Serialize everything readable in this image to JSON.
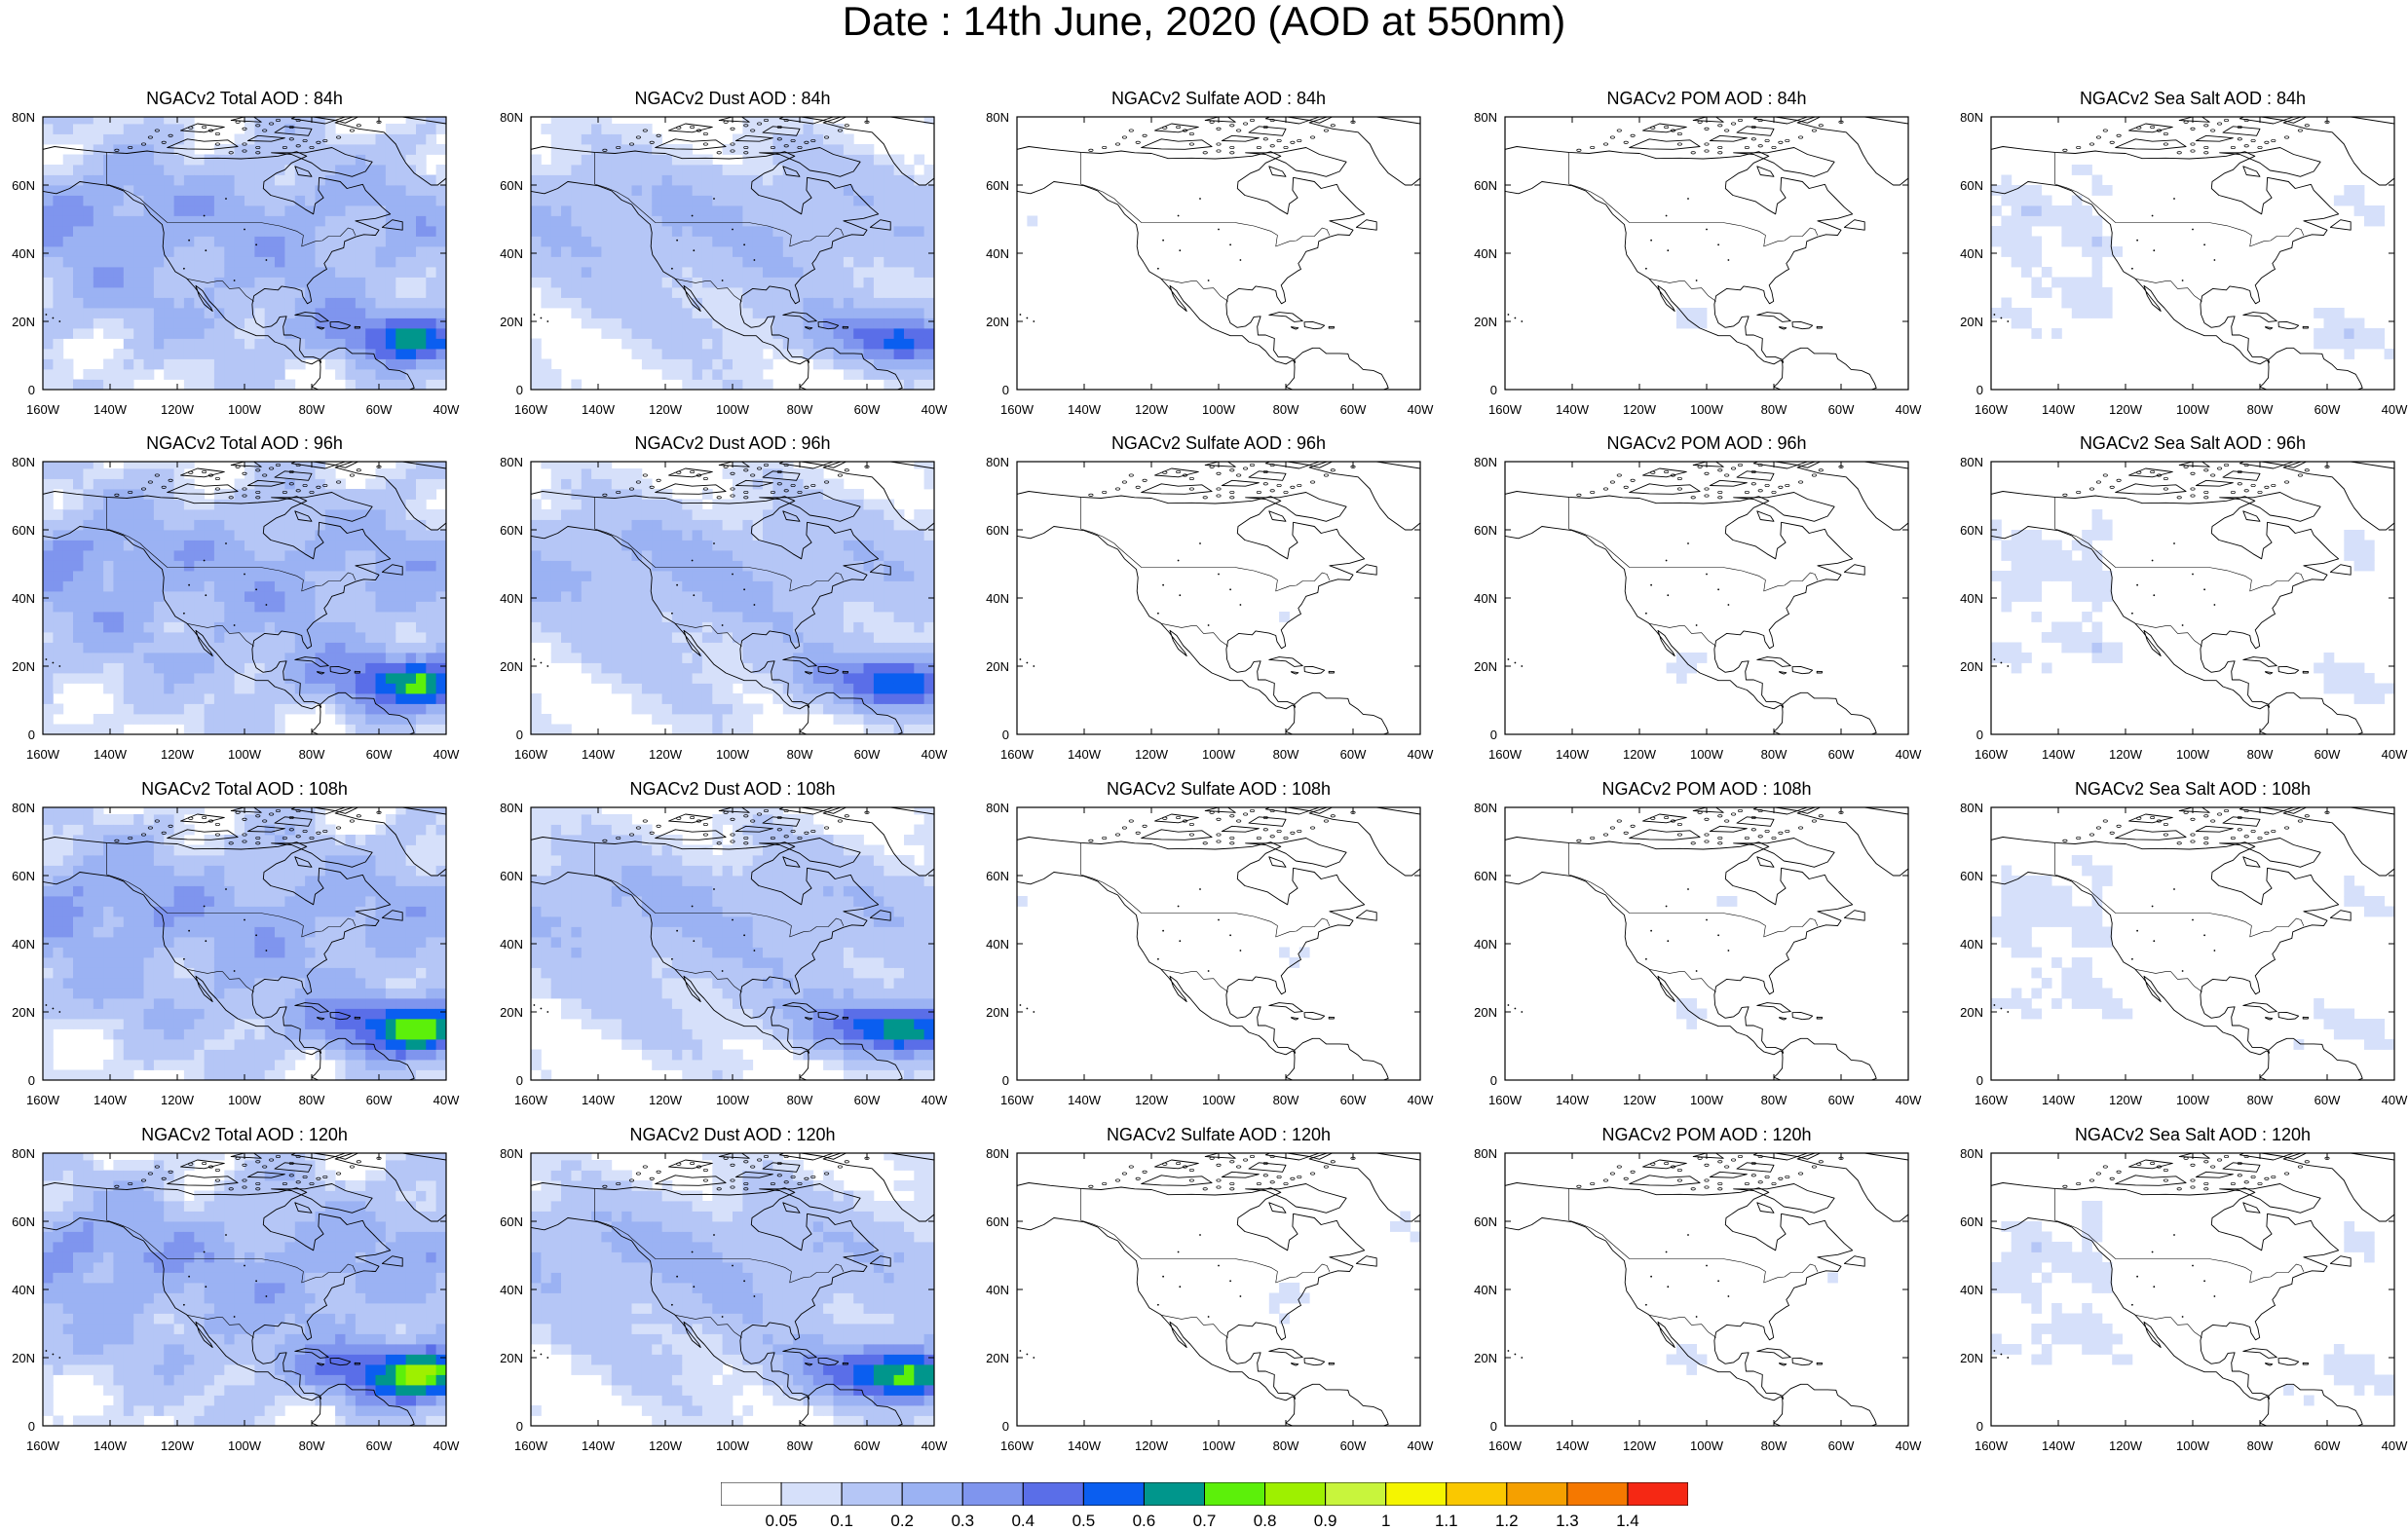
{
  "title": "Date : 14th June, 2020 (AOD at 550nm)",
  "axis": {
    "x_ticks": [
      "160W",
      "140W",
      "120W",
      "100W",
      "80W",
      "60W",
      "40W"
    ],
    "y_ticks": [
      "80N",
      "60N",
      "40N",
      "20N",
      "0"
    ],
    "lon_range": [
      -160,
      -40
    ],
    "lat_range": [
      0,
      80
    ]
  },
  "panels": [
    {
      "title": "NGACv2 Total AOD : 84h",
      "species": "total",
      "lead": 84
    },
    {
      "title": "NGACv2 Dust AOD : 84h",
      "species": "dust",
      "lead": 84
    },
    {
      "title": "NGACv2 Sulfate AOD : 84h",
      "species": "sulfate",
      "lead": 84
    },
    {
      "title": "NGACv2 POM AOD : 84h",
      "species": "pom",
      "lead": 84
    },
    {
      "title": "NGACv2 Sea Salt AOD : 84h",
      "species": "seasalt",
      "lead": 84
    },
    {
      "title": "NGACv2 Total AOD : 96h",
      "species": "total",
      "lead": 96
    },
    {
      "title": "NGACv2 Dust AOD : 96h",
      "species": "dust",
      "lead": 96
    },
    {
      "title": "NGACv2 Sulfate AOD : 96h",
      "species": "sulfate",
      "lead": 96
    },
    {
      "title": "NGACv2 POM AOD : 96h",
      "species": "pom",
      "lead": 96
    },
    {
      "title": "NGACv2 Sea Salt AOD : 96h",
      "species": "seasalt",
      "lead": 96
    },
    {
      "title": "NGACv2 Total AOD : 108h",
      "species": "total",
      "lead": 108
    },
    {
      "title": "NGACv2 Dust AOD : 108h",
      "species": "dust",
      "lead": 108
    },
    {
      "title": "NGACv2 Sulfate AOD : 108h",
      "species": "sulfate",
      "lead": 108
    },
    {
      "title": "NGACv2 POM AOD : 108h",
      "species": "pom",
      "lead": 108
    },
    {
      "title": "NGACv2 Sea Salt AOD : 108h",
      "species": "seasalt",
      "lead": 108
    },
    {
      "title": "NGACv2 Total AOD : 120h",
      "species": "total",
      "lead": 120
    },
    {
      "title": "NGACv2 Dust AOD : 120h",
      "species": "dust",
      "lead": 120
    },
    {
      "title": "NGACv2 Sulfate AOD : 120h",
      "species": "sulfate",
      "lead": 120
    },
    {
      "title": "NGACv2 POM AOD : 120h",
      "species": "pom",
      "lead": 120
    },
    {
      "title": "NGACv2 Sea Salt  AOD : 120h",
      "species": "seasalt",
      "lead": 120
    }
  ],
  "colorbar": {
    "labels": [
      "0.05",
      "0.1",
      "0.2",
      "0.3",
      "0.4",
      "0.5",
      "0.6",
      "0.7",
      "0.8",
      "0.9",
      "1",
      "1.1",
      "1.2",
      "1.3",
      "1.4"
    ],
    "colors": [
      "#ffffff",
      "#d6e0fa",
      "#b5c6f6",
      "#9bb2f3",
      "#7f95ee",
      "#5a6ee8",
      "#0a5ef0",
      "#00968c",
      "#5cf00a",
      "#9ef000",
      "#c8f53c",
      "#f5f500",
      "#fac800",
      "#f5a000",
      "#f57800",
      "#f52814"
    ]
  }
}
